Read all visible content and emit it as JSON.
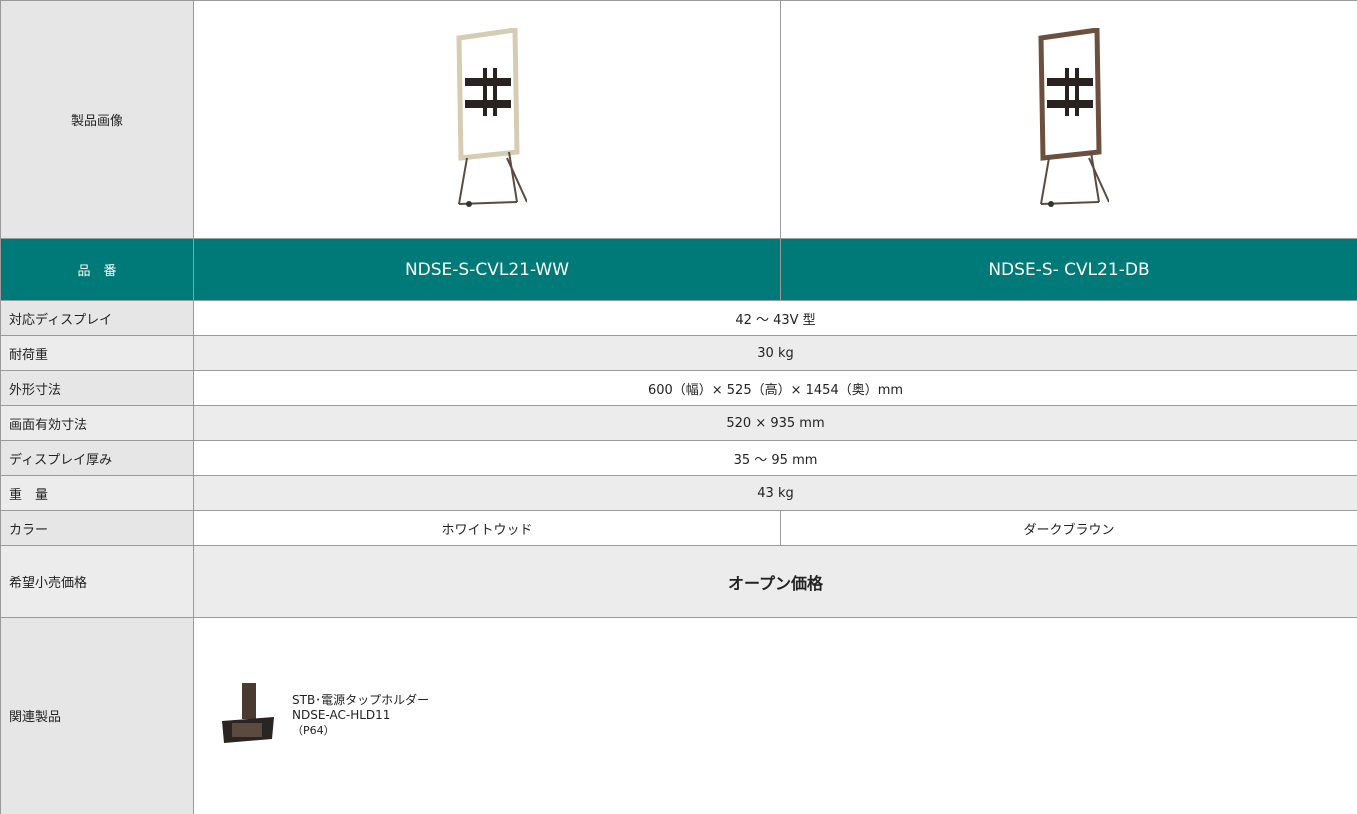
{
  "product_image_label": "製品画像",
  "model": {
    "label": "品　番",
    "values": [
      "NDSE-S-CVL21-WW",
      "NDSE-S- CVL21-DB"
    ]
  },
  "specs": [
    {
      "label": "対応ディスプレイ",
      "value": "42 ～ 43V 型"
    },
    {
      "label": "耐荷重",
      "value": "30 kg"
    },
    {
      "label": "外形寸法",
      "value": "600（幅）× 525（高）× 1454（奥）mm"
    },
    {
      "label": "画面有効寸法",
      "value": "520 × 935 mm"
    },
    {
      "label": "ディスプレイ厚み",
      "value": "35 ～ 95 mm"
    },
    {
      "label": "重　量",
      "value": "43 kg"
    }
  ],
  "color": {
    "label": "カラー",
    "values": [
      "ホワイトウッド",
      "ダークブラウン"
    ]
  },
  "price": {
    "label": "希望小売価格",
    "value": "オープン価格"
  },
  "related": {
    "label": "関連製品",
    "name": "STB･電源タップホルダー",
    "model": "NDSE-AC-HLD11",
    "page": "（P64）"
  }
}
